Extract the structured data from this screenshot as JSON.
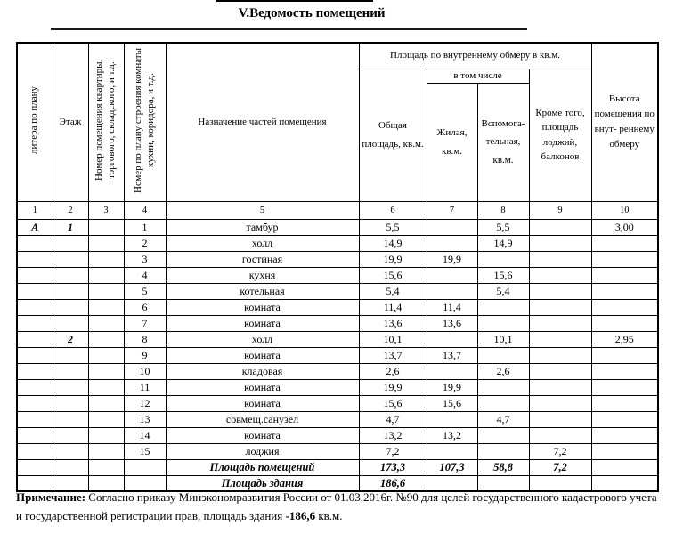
{
  "page": {
    "title": "V.Ведомость помещений",
    "note": {
      "label": "Примечание:",
      "body": " Согласно приказу Минэкономразвития России от 01.03.2016г. №90 для целей государственного кадастрового учета и государственной регистрации прав, площадь здания ",
      "bold_value": "-186,6",
      "suffix": " кв.м."
    }
  },
  "table": {
    "group_headers": {
      "inner_area": "Площадь по внутреннему обмеру в кв.м.",
      "including": "в том числе"
    },
    "columns": {
      "litera": "литера по плану",
      "floor": "Этаж",
      "apt_number": "Номер помещения квартиры, торгового, складского, и т.д.",
      "plan_number": "Номер по плану строения комнаты кухни, коридора, и т.д.",
      "purpose": "Назначение частей помещения",
      "total_area": "Общая площадь, кв.м.",
      "living_area": "Жилая, кв.м.",
      "aux_area": "Вспомога- тельная, кв.м.",
      "balcony_area": "Кроме того, площадь лоджий, балконов",
      "height": "Высота помещения по внут- реннему обмеру"
    },
    "column_numbers": [
      "1",
      "2",
      "3",
      "4",
      "5",
      "6",
      "7",
      "8",
      "9",
      "10"
    ],
    "rows": [
      {
        "litera": "А",
        "floor": "1",
        "apt": "",
        "num": "1",
        "purpose": "тамбур",
        "total": "5,5",
        "living": "",
        "aux": "5,5",
        "balcony": "",
        "height": "3,00"
      },
      {
        "litera": "",
        "floor": "",
        "apt": "",
        "num": "2",
        "purpose": "холл",
        "total": "14,9",
        "living": "",
        "aux": "14,9",
        "balcony": "",
        "height": ""
      },
      {
        "litera": "",
        "floor": "",
        "apt": "",
        "num": "3",
        "purpose": "гостиная",
        "total": "19,9",
        "living": "19,9",
        "aux": "",
        "balcony": "",
        "height": ""
      },
      {
        "litera": "",
        "floor": "",
        "apt": "",
        "num": "4",
        "purpose": "кухня",
        "total": "15,6",
        "living": "",
        "aux": "15,6",
        "balcony": "",
        "height": ""
      },
      {
        "litera": "",
        "floor": "",
        "apt": "",
        "num": "5",
        "purpose": "котельная",
        "total": "5,4",
        "living": "",
        "aux": "5,4",
        "balcony": "",
        "height": ""
      },
      {
        "litera": "",
        "floor": "",
        "apt": "",
        "num": "6",
        "purpose": "комната",
        "total": "11,4",
        "living": "11,4",
        "aux": "",
        "balcony": "",
        "height": ""
      },
      {
        "litera": "",
        "floor": "",
        "apt": "",
        "num": "7",
        "purpose": "комната",
        "total": "13,6",
        "living": "13,6",
        "aux": "",
        "balcony": "",
        "height": ""
      },
      {
        "litera": "",
        "floor": "2",
        "apt": "",
        "num": "8",
        "purpose": "холл",
        "total": "10,1",
        "living": "",
        "aux": "10,1",
        "balcony": "",
        "height": "2,95"
      },
      {
        "litera": "",
        "floor": "",
        "apt": "",
        "num": "9",
        "purpose": "комната",
        "total": "13,7",
        "living": "13,7",
        "aux": "",
        "balcony": "",
        "height": ""
      },
      {
        "litera": "",
        "floor": "",
        "apt": "",
        "num": "10",
        "purpose": "кладовая",
        "total": "2,6",
        "living": "",
        "aux": "2,6",
        "balcony": "",
        "height": ""
      },
      {
        "litera": "",
        "floor": "",
        "apt": "",
        "num": "11",
        "purpose": "комната",
        "total": "19,9",
        "living": "19,9",
        "aux": "",
        "balcony": "",
        "height": ""
      },
      {
        "litera": "",
        "floor": "",
        "apt": "",
        "num": "12",
        "purpose": "комната",
        "total": "15,6",
        "living": "15,6",
        "aux": "",
        "balcony": "",
        "height": ""
      },
      {
        "litera": "",
        "floor": "",
        "apt": "",
        "num": "13",
        "purpose": "совмещ.санузел",
        "total": "4,7",
        "living": "",
        "aux": "4,7",
        "balcony": "",
        "height": ""
      },
      {
        "litera": "",
        "floor": "",
        "apt": "",
        "num": "14",
        "purpose": "комната",
        "total": "13,2",
        "living": "13,2",
        "aux": "",
        "balcony": "",
        "height": ""
      },
      {
        "litera": "",
        "floor": "",
        "apt": "",
        "num": "15",
        "purpose": "лоджия",
        "total": "7,2",
        "living": "",
        "aux": "",
        "balcony": "7,2",
        "height": ""
      }
    ],
    "total_rows": [
      {
        "label": "Площадь помещений",
        "total": "173,3",
        "living": "107,3",
        "aux": "58,8",
        "balcony": "7,2",
        "height": ""
      },
      {
        "label": "Площадь здания",
        "total": "186,6",
        "living": "",
        "aux": "",
        "balcony": "",
        "height": ""
      }
    ]
  }
}
